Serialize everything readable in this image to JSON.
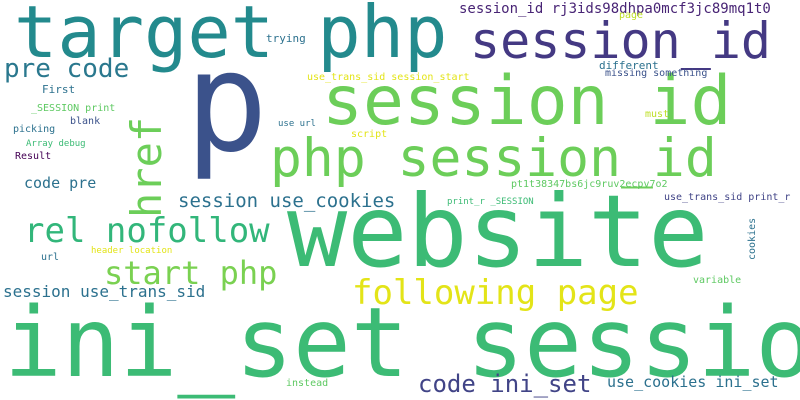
{
  "words": [
    {
      "text": "p",
      "color": "#3b528b"
    },
    {
      "text": "website",
      "color": "#3cbb75"
    },
    {
      "text": "ini_set session",
      "color": "#3cbb75"
    },
    {
      "text": "target php",
      "color": "#238a8d"
    },
    {
      "text": "session id",
      "color": "#6cce59"
    },
    {
      "text": "php session_id",
      "color": "#6cce59"
    },
    {
      "text": "session_id",
      "color": "#443983"
    },
    {
      "text": "href",
      "color": "#6cce59"
    },
    {
      "text": "following page",
      "color": "#e3e418"
    },
    {
      "text": "rel nofollow",
      "color": "#32b67a"
    },
    {
      "text": "start php",
      "color": "#7ad151"
    },
    {
      "text": "pre code",
      "color": "#2a788e"
    },
    {
      "text": "code ini_set",
      "color": "#414487"
    },
    {
      "text": "session use_cookies",
      "color": "#2c718e"
    },
    {
      "text": "session use_trans_sid",
      "color": "#2c718e"
    },
    {
      "text": "code pre",
      "color": "#2c718e"
    },
    {
      "text": "session_id rj3ids98dhpa0mcf3jc89mq1t0",
      "color": "#482475"
    },
    {
      "text": "use_cookies ini_set",
      "color": "#2c718e"
    },
    {
      "text": "trying",
      "color": "#2c718e"
    },
    {
      "text": "page",
      "color": "#bddf26"
    },
    {
      "text": "different",
      "color": "#2c718e"
    },
    {
      "text": "missing something",
      "color": "#3b528b"
    },
    {
      "text": "use_trans_sid session_start",
      "color": "#e3e418"
    },
    {
      "text": "First",
      "color": "#2c718e"
    },
    {
      "text": "_SESSION print",
      "color": "#5ec962"
    },
    {
      "text": "blank",
      "color": "#3b528b"
    },
    {
      "text": "picking",
      "color": "#2c718e"
    },
    {
      "text": "Array debug",
      "color": "#3cbb75"
    },
    {
      "text": "Result",
      "color": "#440154"
    },
    {
      "text": "use url",
      "color": "#2c718e"
    },
    {
      "text": "script",
      "color": "#e3e418"
    },
    {
      "text": "must",
      "color": "#bddf26"
    },
    {
      "text": "pt1t38347bs6jc9ruv2ecpv7o2",
      "color": "#5ec962"
    },
    {
      "text": "use_trans_sid print_r",
      "color": "#414487"
    },
    {
      "text": "print_r _SESSION",
      "color": "#3cbb75"
    },
    {
      "text": "cookies",
      "color": "#2c718e"
    },
    {
      "text": "header location",
      "color": "#e3e418"
    },
    {
      "text": "url",
      "color": "#2c718e"
    },
    {
      "text": "variable",
      "color": "#5ec962"
    },
    {
      "text": "instead",
      "color": "#5ec962"
    }
  ]
}
